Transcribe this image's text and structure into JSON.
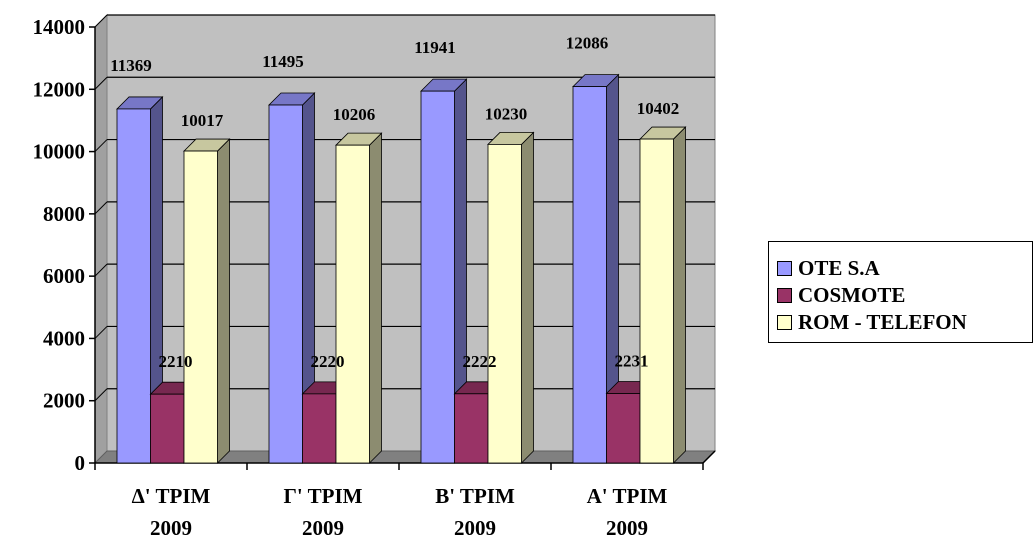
{
  "chart_data": {
    "type": "bar",
    "categories": [
      [
        "Δ' ΤΡΙΜ",
        "2009"
      ],
      [
        "Γ' ΤΡΙΜ",
        "2009"
      ],
      [
        "Β' ΤΡΙΜ",
        "2009"
      ],
      [
        "Α' ΤΡΙΜ",
        "2009"
      ]
    ],
    "series": [
      {
        "name": "OTE S.A",
        "values": [
          11369,
          11495,
          11941,
          12086
        ],
        "color": "#9999FF"
      },
      {
        "name": "COSMOTE",
        "values": [
          2210,
          2220,
          2222,
          2231
        ],
        "color": "#993366"
      },
      {
        "name": "ROM - TELEFON",
        "values": [
          10017,
          10206,
          10230,
          10402
        ],
        "color": "#FFFFCC"
      }
    ],
    "ylim": [
      0,
      14000
    ],
    "yticks": [
      0,
      2000,
      4000,
      6000,
      8000,
      10000,
      12000,
      14000
    ],
    "grid": true,
    "legend_position": "right",
    "wall_color": "#C0C0C0",
    "floor_color": "#808080"
  }
}
